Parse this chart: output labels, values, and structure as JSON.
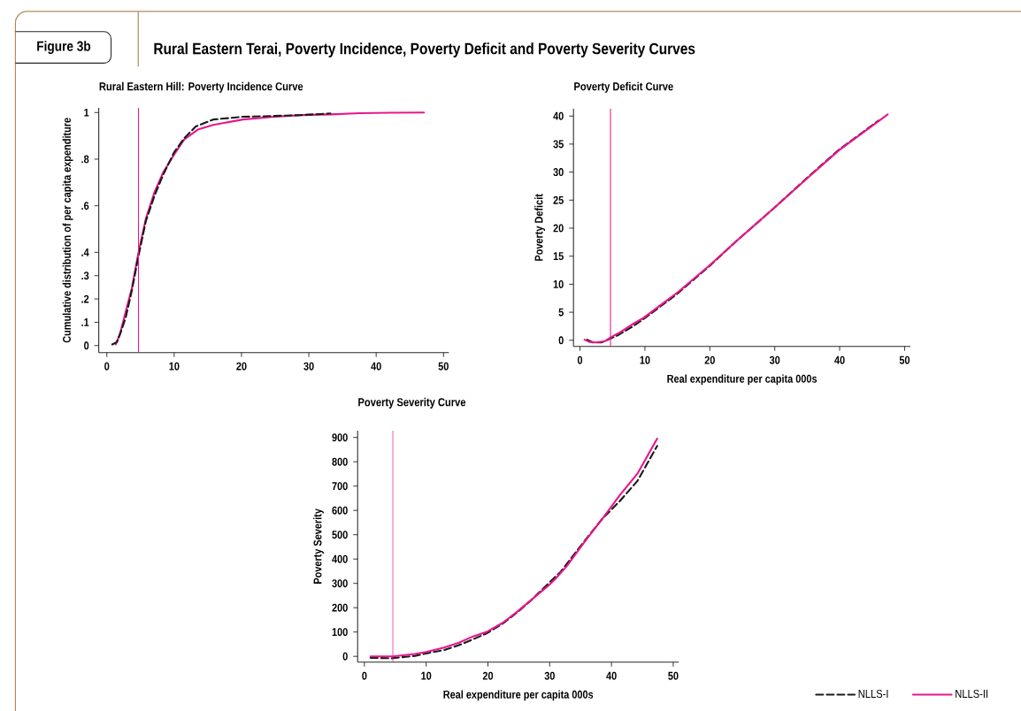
{
  "chart_data": [
    {
      "type": "other",
      "title": "Rural Eastern Terai, Poverty Incidence, Poverty Deficit and Poverty Severity Curves",
      "annotations": [
        "Figure 3b"
      ]
    },
    {
      "type": "line",
      "title": "Rural Eastern Hill: Poverty Incidence Curve",
      "ylabel": "Cumulative distribution of per capita expenditure",
      "xlim": [
        -1.2,
        50.8
      ],
      "ylim": [
        -0.03,
        1.02
      ],
      "xticks": [
        0,
        10,
        20,
        30,
        40,
        50
      ],
      "yticks": [
        0,
        {
          "value": 0.1,
          "label": ".1"
        },
        {
          "value": 0.2,
          "label": ".2"
        },
        {
          "value": 0.3,
          "label": ".3"
        },
        {
          "value": 0.4,
          "label": ".4"
        },
        {
          "value": 0.6,
          "label": ".6"
        },
        {
          "value": 0.8,
          "label": ".8"
        },
        1
      ],
      "ref_lines": [
        {
          "axis": "x",
          "value": 4.7,
          "color": "#e8168c"
        }
      ],
      "series": [
        {
          "color": "#e8168c",
          "line_style": "solid",
          "x": [
            1.3,
            1.9,
            2.8,
            3.7,
            4.7,
            5.8,
            7.1,
            8.4,
            10,
            11.5,
            13.6,
            15.8,
            20.2,
            24.5,
            28.8,
            33.2,
            37.5,
            41.9,
            47.1
          ],
          "values": [
            0.005,
            0.045,
            0.145,
            0.245,
            0.4,
            0.545,
            0.66,
            0.745,
            0.82,
            0.885,
            0.928,
            0.947,
            0.97,
            0.981,
            0.989,
            0.992,
            0.997,
            0.999,
            1.0
          ]
        },
        {
          "color": "#1a1a1a",
          "line_style": "dashed",
          "x": [
            0.8,
            1.5,
            2.1,
            2.8,
            3.7,
            4.7,
            5.8,
            7.1,
            8.4,
            10,
            11.5,
            13.2,
            15.8,
            20.2,
            24.5,
            28.8,
            33.2
          ],
          "values": [
            0.005,
            0.015,
            0.06,
            0.12,
            0.235,
            0.385,
            0.535,
            0.645,
            0.735,
            0.83,
            0.89,
            0.94,
            0.97,
            0.982,
            0.985,
            0.989,
            0.996
          ]
        }
      ]
    },
    {
      "type": "line",
      "title": "Poverty Deficit Curve",
      "xlabel": "Real expenditure per capita 000s",
      "ylabel": "Poverty Deficit",
      "xlim": [
        -1,
        50.9
      ],
      "ylim": [
        -1.1,
        41.3
      ],
      "xticks": [
        0,
        10,
        20,
        30,
        40,
        50
      ],
      "yticks": [
        0,
        5,
        10,
        15,
        20,
        25,
        30,
        35,
        40
      ],
      "ref_lines": [
        {
          "axis": "x",
          "value": 4.7,
          "color": "#e8168c"
        }
      ],
      "series": [
        {
          "color": "#1a1a1a",
          "line_style": "dashed",
          "x": [
            1.1,
            2,
            3.3,
            4.7,
            6,
            8.3,
            9.8,
            12.8,
            15.1,
            19.9,
            24.1,
            30,
            35.4,
            39.9,
            46
          ],
          "values": [
            0.1,
            -0.4,
            -0.4,
            0.3,
            1,
            2.6,
            3.8,
            6.4,
            8.4,
            13.2,
            17.7,
            23.7,
            29.4,
            34,
            39.2
          ]
        },
        {
          "color": "#e8168c",
          "line_style": "solid",
          "x": [
            0.7,
            1.5,
            2.4,
            3.8,
            4.7,
            6,
            8.3,
            9.8,
            12.8,
            15.1,
            19.9,
            24.1,
            30,
            35.4,
            39.9,
            47.4
          ],
          "values": [
            0.1,
            -0.3,
            -0.4,
            -0.2,
            0.5,
            1.3,
            3,
            4,
            6.6,
            8.6,
            13.3,
            17.7,
            23.7,
            29.3,
            33.9,
            40.3
          ]
        }
      ]
    },
    {
      "type": "line",
      "title": "Poverty Severity Curve",
      "xlabel": "Real expenditure per capita 000s",
      "ylabel": "Poverty Severity",
      "xlim": [
        -1.1,
        50.9
      ],
      "ylim": [
        -24,
        928
      ],
      "xticks": [
        0,
        10,
        20,
        30,
        40,
        50
      ],
      "yticks": [
        0,
        100,
        200,
        300,
        400,
        500,
        600,
        700,
        800,
        900
      ],
      "ref_lines": [
        {
          "axis": "x",
          "value": 4.6,
          "color": "#e8168c"
        }
      ],
      "legend": "bottom right",
      "series": [
        {
          "name": "NLLS-I",
          "color": "#1a1a1a",
          "line_style": "dashed",
          "x": [
            1,
            4.4,
            8.2,
            10,
            12.9,
            15.3,
            17.6,
            19.9,
            22.4,
            24.7,
            27.1,
            29.8,
            31.8,
            34.2,
            36.6,
            38.5,
            41.3,
            44.2,
            47.4
          ],
          "values": [
            -6,
            -8,
            2,
            12,
            26,
            46,
            70,
            96,
            135,
            180,
            233,
            300,
            348,
            427,
            505,
            565,
            637,
            721,
            865
          ]
        },
        {
          "name": "NLLS-II",
          "color": "#e8168c",
          "line_style": "solid",
          "x": [
            1,
            4.6,
            8.2,
            10,
            12.9,
            15.3,
            17.6,
            19.9,
            22.4,
            24.7,
            27.1,
            29.8,
            30.9,
            32.8,
            35.6,
            38.5,
            41.3,
            44.2,
            47.4
          ],
          "values": [
            0,
            0,
            10,
            18,
            36,
            56,
            82,
            102,
            138,
            183,
            234,
            291,
            318,
            372,
            469,
            565,
            661,
            751,
            895
          ]
        }
      ]
    }
  ]
}
